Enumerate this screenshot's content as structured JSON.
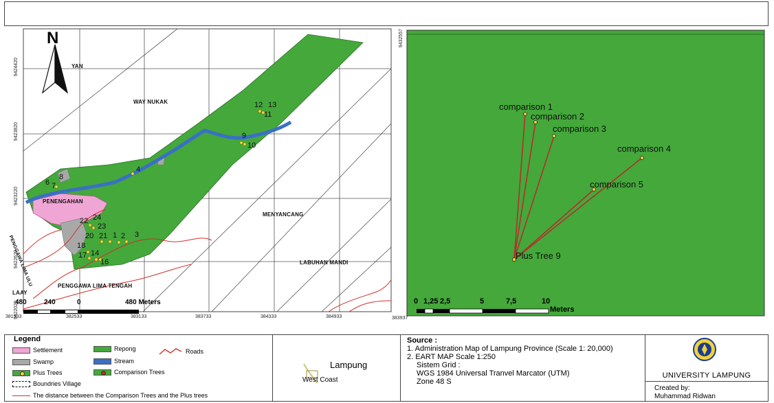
{
  "left_map": {
    "north_letter": "N",
    "y_ticks": [
      "9424420",
      "9423820",
      "9423220",
      "9422620",
      "9422020"
    ],
    "x_ticks": [
      "381933",
      "382533",
      "383133",
      "383733",
      "384333",
      "384933"
    ],
    "area_labels": {
      "yan": "YAN",
      "way_nukak": "WAY NUKAK",
      "penengahan": "PENENGAHAN",
      "menyancang": "MENYANCANG",
      "labuhan_mandi": "LABUHAN MANDI",
      "penggawa_lima_ulu": "PENGGAWA LIMA ULU",
      "penggawa_lima_tengah": "PENGGAWA LIMA TENGAH",
      "laay": "LAAY"
    },
    "tree_numbers": {
      "n12": "12",
      "n13": "13",
      "n11": "11",
      "n9": "9",
      "n10": "10",
      "n4": "4",
      "n6": "6",
      "n7": "7",
      "n8": "8",
      "n22": "22",
      "n24": "24",
      "n23": "23",
      "n20": "20",
      "n21": "21",
      "n1": "1",
      "n2": "2",
      "n3": "3",
      "n18": "18",
      "n17": "17",
      "n14": "14",
      "n16": "16"
    },
    "scale": {
      "l480": "480",
      "l240": "240",
      "l0": "0",
      "right": "480 Meters"
    }
  },
  "right_map": {
    "y_tick": "9432557",
    "x_tick": "383937",
    "comparisons": {
      "c1": "comparison 1",
      "c2": "comparison 2",
      "c3": "comparison 3",
      "c4": "comparison 4",
      "c5": "comparison 5"
    },
    "plus_tree": "Plus Tree 9",
    "scale": {
      "s0": "0",
      "s1": "1,25",
      "s2": "2,5",
      "s5": "5",
      "s75": "7,5",
      "s10": "10",
      "unit": "Meters"
    }
  },
  "legend": {
    "title": "Legend",
    "settlement": "Settlement",
    "repong": "Repong",
    "roads": "Roads",
    "swamp": "Swamp",
    "stream": "Stream",
    "plus_trees": "Plus Trees",
    "comparison_trees": "Comparison Trees",
    "boundries": "Boundries Village",
    "distance": "The distance between the Comparison Trees and the Plus trees"
  },
  "inset": {
    "lampung": "Lampung",
    "west_coast": "West Coast"
  },
  "source": {
    "title": "Source :",
    "line1": "1. Administration Map of Lampung Province (Scale 1: 20,000)",
    "line2": "2. EART MAP Scale 1:250",
    "line3": "Sistem Grid :",
    "line4": "WGS 1984 Universal Tranvel Marcator (UTM)",
    "line5": "Zone 48 S"
  },
  "credits": {
    "university": "UNIVERSITY LAMPUNG",
    "created_by": "Created by:",
    "author": "Muhammad Ridwan"
  },
  "colors": {
    "repong": "#44a83b",
    "settlement": "#f0a6d4",
    "swamp": "#a8a8a8",
    "stream": "#3a6fc6",
    "roads": "#d0302a",
    "grid": "#555555"
  }
}
